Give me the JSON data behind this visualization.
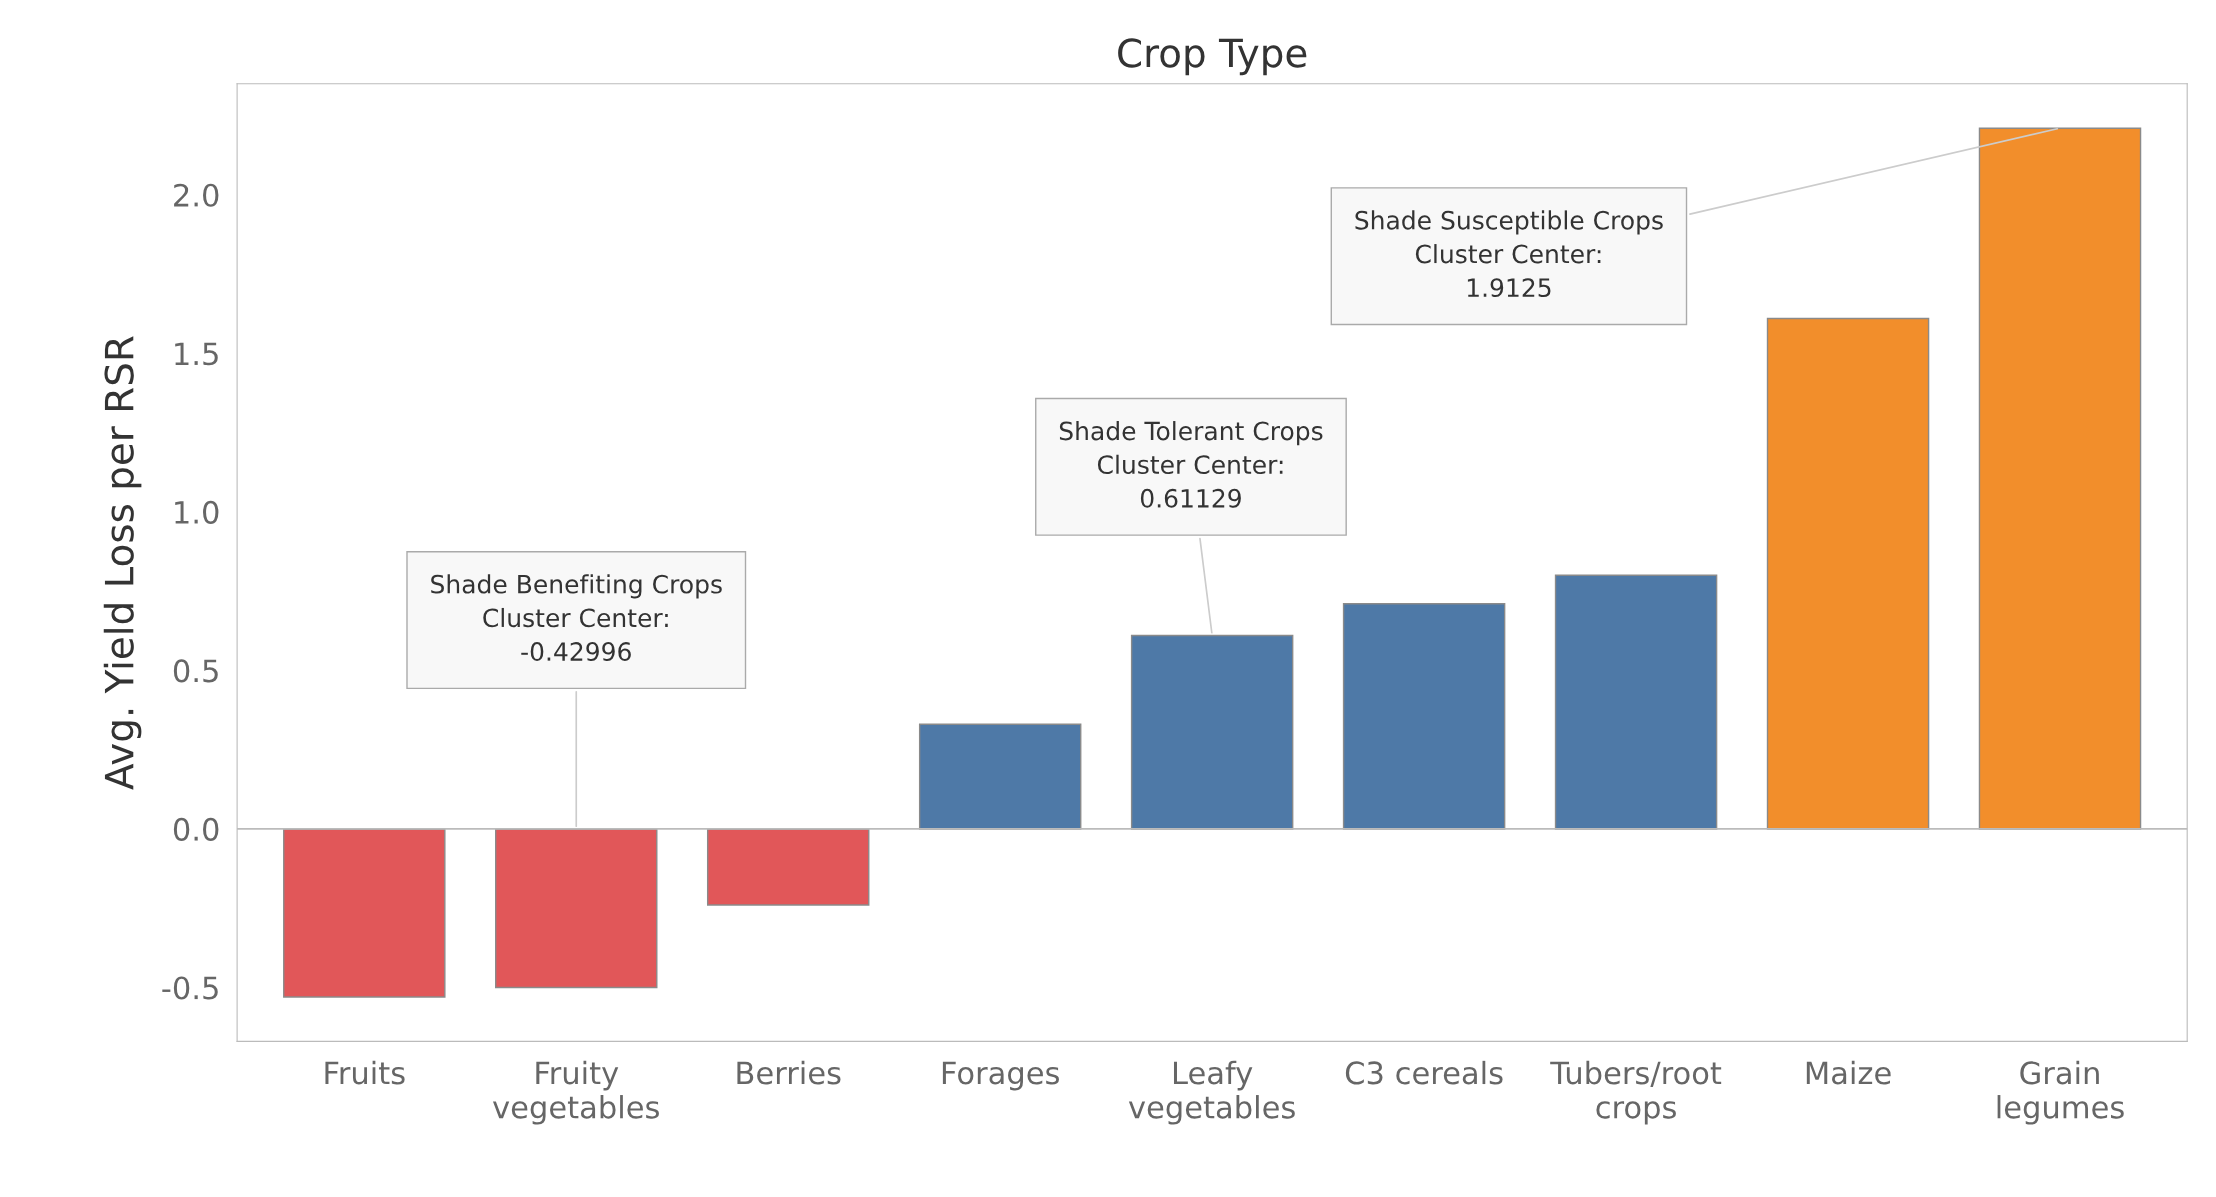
{
  "chart_data": {
    "type": "bar",
    "title": "Crop Type",
    "ylabel": "Avg. Yield Loss per RSR",
    "categories": [
      "Fruits",
      "Fruity vegetables",
      "Berries",
      "Forages",
      "Leafy vegetables",
      "C3 cereals",
      "Tubers/root crops",
      "Maize",
      "Grain legumes"
    ],
    "values": [
      -0.53,
      -0.5,
      -0.24,
      0.33,
      0.61,
      0.71,
      0.8,
      1.61,
      2.21
    ],
    "colors": [
      "#e15759",
      "#e15759",
      "#e15759",
      "#4e79a7",
      "#4e79a7",
      "#4e79a7",
      "#4e79a7",
      "#f28e2b",
      "#f28e2b"
    ],
    "ylim": [
      -0.67,
      2.35
    ],
    "yticks": [
      {
        "value": -0.5,
        "label": "-0.5"
      },
      {
        "value": 0,
        "label": "0.0"
      },
      {
        "value": 0.5,
        "label": "0.5"
      },
      {
        "value": 1,
        "label": "1.0"
      },
      {
        "value": 1.5,
        "label": "1.5"
      },
      {
        "value": 2,
        "label": "2.0"
      }
    ],
    "ref_lines": [
      {
        "axis": "y",
        "value": 0,
        "color": "#bbbbbb"
      }
    ],
    "annotations": [
      {
        "text": "Shade Benefiting Crops\nCluster Center:\n-0.42996",
        "x": "Fruity vegetables",
        "y": 0
      },
      {
        "text": "Shade Tolerant Crops\nCluster Center:\n0.61129",
        "x": "Leafy vegetables",
        "y": 0.61
      },
      {
        "text": "Shade Susceptible Crops\nCluster Center:\n1.9125",
        "x": "Grain legumes",
        "y": 2.21
      }
    ],
    "grid": false
  }
}
